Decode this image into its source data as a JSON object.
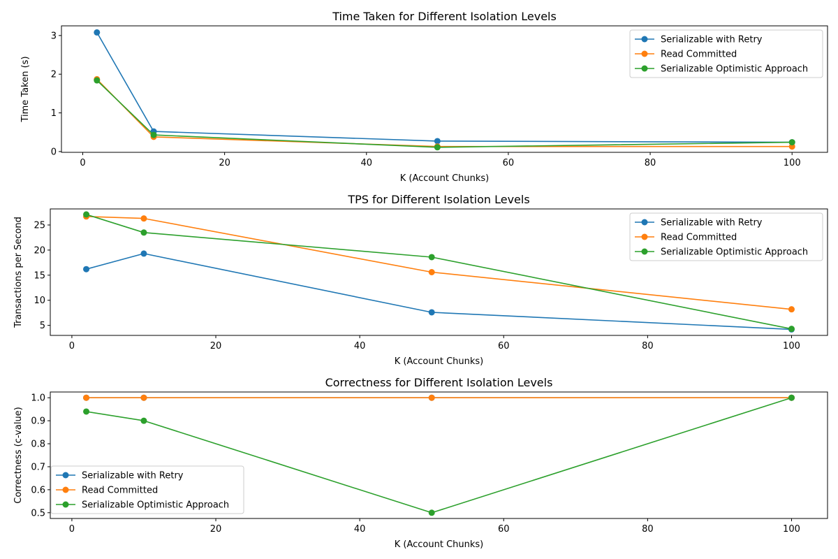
{
  "chart_data": [
    {
      "type": "line",
      "title": "Time Taken for Different Isolation Levels",
      "xlabel": "K (Account Chunks)",
      "ylabel": "Time Taken (s)",
      "xlim": [
        -3,
        105
      ],
      "ylim": [
        -0.02,
        3.25
      ],
      "xticks": [
        0,
        20,
        40,
        60,
        80,
        100
      ],
      "yticks": [
        0,
        1,
        2,
        3
      ],
      "yticks_text": [
        "0",
        "1",
        "2",
        "3"
      ],
      "legend_position": "upper right",
      "x": [
        2,
        10,
        50,
        100
      ],
      "series": [
        {
          "name": "Serializable with Retry",
          "color": "#1f77b4",
          "values": [
            3.08,
            0.52,
            0.27,
            0.24
          ]
        },
        {
          "name": "Read Committed",
          "color": "#ff7f0e",
          "values": [
            1.87,
            0.38,
            0.13,
            0.13
          ]
        },
        {
          "name": "Serializable Optimistic Approach",
          "color": "#2ca02c",
          "values": [
            1.84,
            0.43,
            0.11,
            0.24
          ]
        }
      ]
    },
    {
      "type": "line",
      "title": "TPS for Different Isolation Levels",
      "xlabel": "K (Account Chunks)",
      "ylabel": "Transactions per Second",
      "xlim": [
        -3,
        105
      ],
      "ylim": [
        3.0,
        28.2
      ],
      "xticks": [
        0,
        20,
        40,
        60,
        80,
        100
      ],
      "yticks": [
        5,
        10,
        15,
        20,
        25
      ],
      "yticks_text": [
        "5",
        "10",
        "15",
        "20",
        "25"
      ],
      "legend_position": "upper right",
      "x": [
        2,
        10,
        50,
        100
      ],
      "series": [
        {
          "name": "Serializable with Retry",
          "color": "#1f77b4",
          "values": [
            16.2,
            19.3,
            7.6,
            4.2
          ]
        },
        {
          "name": "Read Committed",
          "color": "#ff7f0e",
          "values": [
            26.7,
            26.3,
            15.6,
            8.2
          ]
        },
        {
          "name": "Serializable Optimistic Approach",
          "color": "#2ca02c",
          "values": [
            27.1,
            23.5,
            18.6,
            4.3
          ]
        }
      ]
    },
    {
      "type": "line",
      "title": "Correctness for Different Isolation Levels",
      "xlabel": "K (Account Chunks)",
      "ylabel": "Correctness (c-value)",
      "xlim": [
        -3,
        105
      ],
      "ylim": [
        0.475,
        1.025
      ],
      "xticks": [
        0,
        20,
        40,
        60,
        80,
        100
      ],
      "yticks": [
        0.5,
        0.6,
        0.7,
        0.8,
        0.9,
        1.0
      ],
      "yticks_text": [
        "0.5",
        "0.6",
        "0.7",
        "0.8",
        "0.9",
        "1.0"
      ],
      "legend_position": "lower left",
      "x": [
        2,
        10,
        50,
        100
      ],
      "series": [
        {
          "name": "Serializable with Retry",
          "color": "#1f77b4",
          "values": [
            1.0,
            1.0,
            1.0,
            1.0
          ]
        },
        {
          "name": "Read Committed",
          "color": "#ff7f0e",
          "values": [
            1.0,
            1.0,
            1.0,
            1.0
          ]
        },
        {
          "name": "Serializable Optimistic Approach",
          "color": "#2ca02c",
          "values": [
            0.94,
            0.9,
            0.5,
            1.0
          ]
        }
      ]
    }
  ]
}
